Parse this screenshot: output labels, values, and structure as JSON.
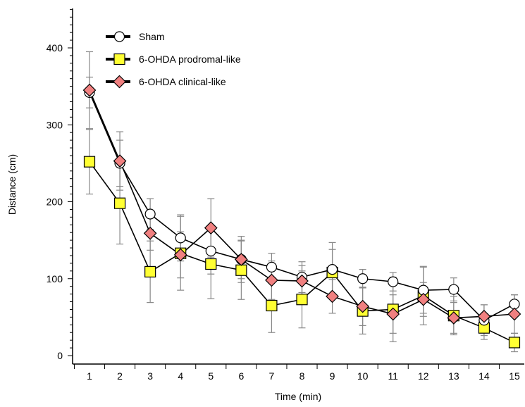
{
  "chart_data": {
    "type": "line",
    "title": "",
    "xlabel": "Time (min)",
    "ylabel": "Distance (cm)",
    "x": [
      1,
      2,
      3,
      4,
      5,
      6,
      7,
      8,
      9,
      10,
      11,
      12,
      13,
      14,
      15
    ],
    "xlim": [
      0.5,
      15.5
    ],
    "ylim": [
      0,
      450
    ],
    "yticks": [
      0,
      100,
      200,
      300,
      400
    ],
    "legend_position": "top-left",
    "grid": false,
    "series": [
      {
        "name": "Sham",
        "marker": "circle",
        "color": "#ffffff",
        "values": [
          342,
          250,
          184,
          153,
          136,
          125,
          115,
          102,
          112,
          100,
          96,
          85,
          86,
          46,
          67
        ],
        "error": [
          20,
          30,
          20,
          30,
          30,
          30,
          18,
          20,
          35,
          12,
          12,
          30,
          15,
          20,
          12
        ]
      },
      {
        "name": "6-OHDA prodromal-like",
        "marker": "square",
        "color": "#ffff33",
        "values": [
          252,
          198,
          109,
          133,
          119,
          111,
          65,
          73,
          108,
          58,
          60,
          78,
          52,
          36,
          17
        ],
        "error": [
          42,
          53,
          40,
          48,
          45,
          38,
          35,
          37,
          30,
          30,
          42,
          38,
          25,
          15,
          12
        ]
      },
      {
        "name": "6-OHDA clinical-like",
        "marker": "diamond",
        "color": "#f08080",
        "values": [
          345,
          253,
          159,
          131,
          166,
          125,
          98,
          97,
          77,
          64,
          54,
          73,
          49,
          51,
          54
        ],
        "error": [
          50,
          38,
          22,
          30,
          38,
          25,
          25,
          20,
          22,
          25,
          25,
          22,
          20,
          15,
          25
        ]
      }
    ]
  }
}
